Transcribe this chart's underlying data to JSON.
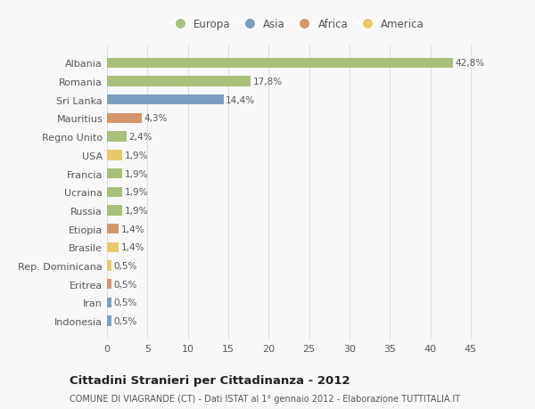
{
  "countries": [
    "Albania",
    "Romania",
    "Sri Lanka",
    "Mauritius",
    "Regno Unito",
    "USA",
    "Francia",
    "Ucraina",
    "Russia",
    "Etiopia",
    "Brasile",
    "Rep. Dominicana",
    "Eritrea",
    "Iran",
    "Indonesia"
  ],
  "values": [
    42.8,
    17.8,
    14.4,
    4.3,
    2.4,
    1.9,
    1.9,
    1.9,
    1.9,
    1.4,
    1.4,
    0.5,
    0.5,
    0.5,
    0.5
  ],
  "labels": [
    "42,8%",
    "17,8%",
    "14,4%",
    "4,3%",
    "2,4%",
    "1,9%",
    "1,9%",
    "1,9%",
    "1,9%",
    "1,4%",
    "1,4%",
    "0,5%",
    "0,5%",
    "0,5%",
    "0,5%"
  ],
  "continents": [
    "Europa",
    "Europa",
    "Asia",
    "Africa",
    "Europa",
    "America",
    "Europa",
    "Europa",
    "Europa",
    "Africa",
    "America",
    "America",
    "Africa",
    "Asia",
    "Asia"
  ],
  "continent_colors": {
    "Europa": "#a8c07a",
    "Asia": "#7a9fc0",
    "Africa": "#d4956a",
    "America": "#e8c86a"
  },
  "legend_order": [
    "Europa",
    "Asia",
    "Africa",
    "America"
  ],
  "title": "Cittadini Stranieri per Cittadinanza - 2012",
  "subtitle": "COMUNE DI VIAGRANDE (CT) - Dati ISTAT al 1° gennaio 2012 - Elaborazione TUTTITALIA.IT",
  "xlim": [
    0,
    47
  ],
  "xticks": [
    0,
    5,
    10,
    15,
    20,
    25,
    30,
    35,
    40,
    45
  ],
  "background_color": "#f8f8f8",
  "grid_color": "#dddddd",
  "text_color": "#555555",
  "bar_height": 0.55
}
